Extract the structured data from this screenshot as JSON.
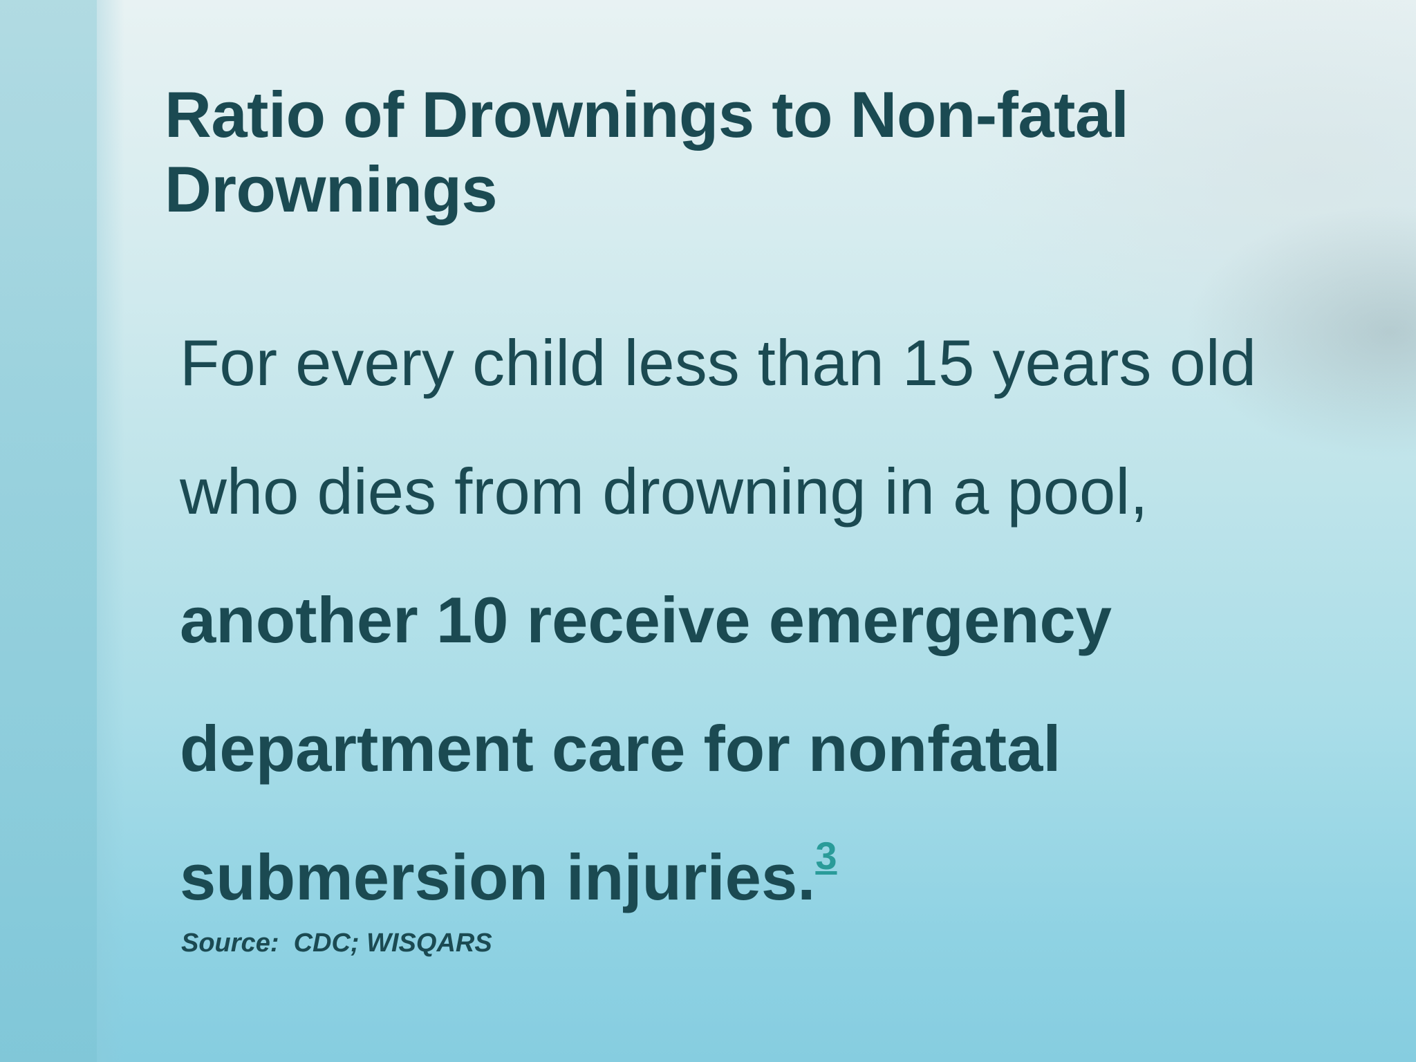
{
  "slide": {
    "title": "Ratio of Drownings to Non-fatal Drownings",
    "body": {
      "normal_text": "For every child less than 15 years old who dies from drowning in a pool, ",
      "bold_text": "another 10 receive emergency department care for nonfatal submersion injuries.",
      "reference_marker": "3"
    },
    "source": "Source:  CDC; WISQARS"
  },
  "colors": {
    "text": "#1b4a52",
    "link": "#2a9b99",
    "background_top": "#e8f2f3",
    "background_bottom": "#86cde0"
  }
}
